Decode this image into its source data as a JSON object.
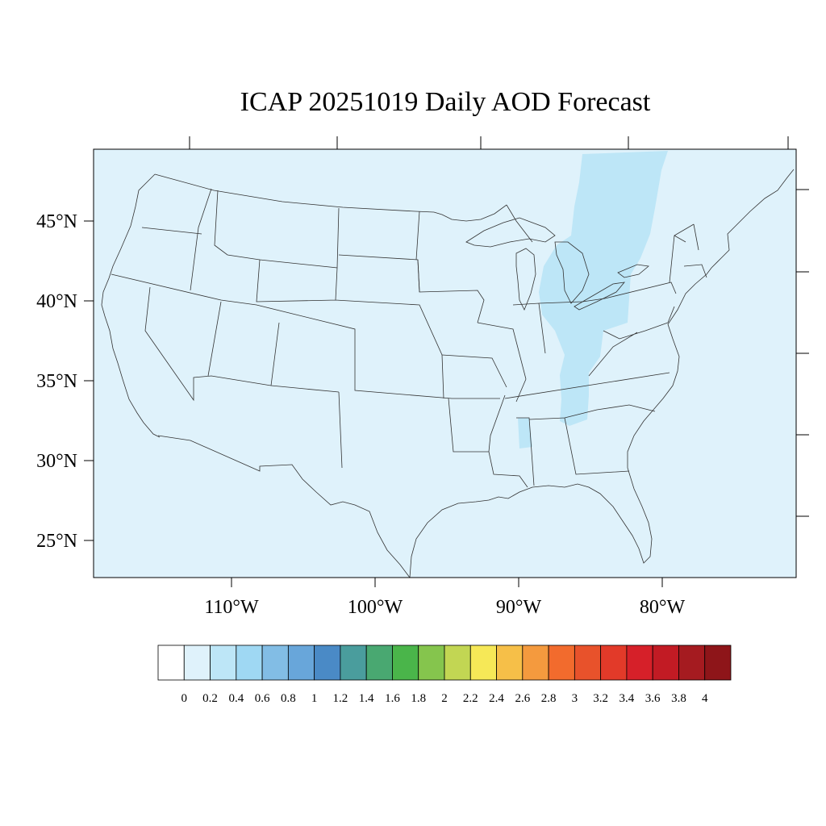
{
  "title": "ICAP 20251019 Daily AOD Forecast",
  "map": {
    "lat_labels": [
      "45°N",
      "40°N",
      "35°N",
      "30°N",
      "25°N"
    ],
    "lon_labels": [
      "110°W",
      "100°W",
      "90°W",
      "80°W"
    ],
    "background_color": "#dff2fb",
    "plume_color": "#bde6f7",
    "line_color": "#333333"
  },
  "colorbar": {
    "colors": [
      "#ffffff",
      "#dff2fb",
      "#bde6f7",
      "#9fd8f3",
      "#82bde5",
      "#68a6da",
      "#4a8ac6",
      "#4a9d9d",
      "#49a871",
      "#4ab54a",
      "#85c54d",
      "#c2d653",
      "#f6e857",
      "#f6bf48",
      "#f49a3e",
      "#f26b2d",
      "#e8522b",
      "#e23a29",
      "#d62029",
      "#c21b24",
      "#a51b20",
      "#8e1519"
    ],
    "labels": [
      "0",
      "0.2",
      "0.4",
      "0.6",
      "0.8",
      "1",
      "1.2",
      "1.4",
      "1.6",
      "1.8",
      "2",
      "2.2",
      "2.4",
      "2.6",
      "2.8",
      "3",
      "3.2",
      "3.4",
      "3.6",
      "3.8",
      "4"
    ]
  }
}
